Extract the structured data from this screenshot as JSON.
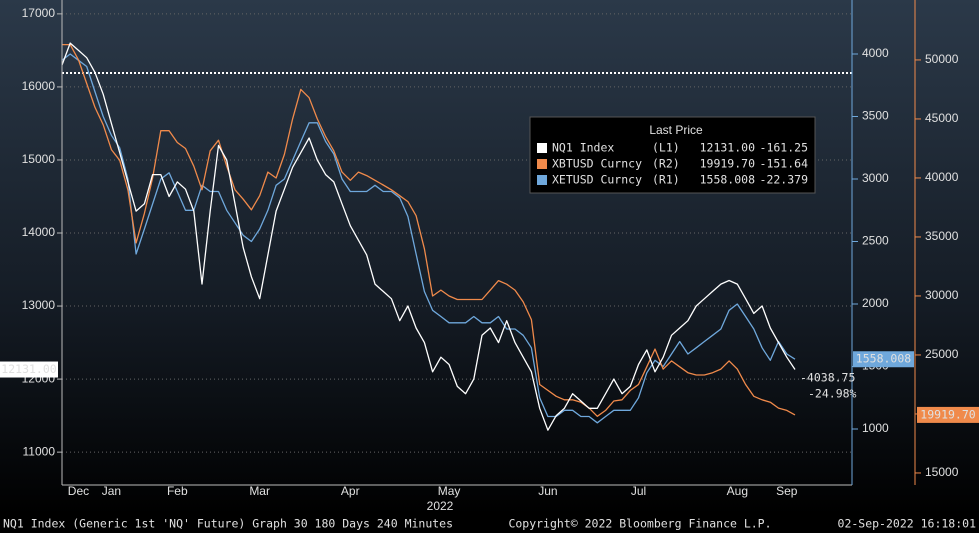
{
  "chart_data": {
    "type": "line",
    "categories": [
      null,
      null,
      "Dec",
      null,
      null,
      null,
      "Jan",
      null,
      null,
      null,
      null,
      null,
      null,
      null,
      "Feb",
      null,
      null,
      null,
      null,
      null,
      null,
      null,
      null,
      null,
      "Mar",
      null,
      null,
      null,
      null,
      null,
      null,
      null,
      null,
      null,
      null,
      "Apr",
      null,
      null,
      null,
      null,
      null,
      null,
      null,
      null,
      null,
      null,
      null,
      "May",
      null,
      null,
      null,
      null,
      null,
      null,
      null,
      null,
      null,
      null,
      null,
      "Jun",
      null,
      null,
      null,
      null,
      null,
      null,
      null,
      null,
      null,
      null,
      "Jul",
      null,
      null,
      null,
      null,
      null,
      null,
      null,
      null,
      null,
      null,
      null,
      "Aug",
      null,
      null,
      null,
      null,
      null,
      "Sep",
      null
    ],
    "year_label": "2022",
    "ylim": [
      10550,
      17190
    ],
    "yticks": [
      11000,
      12000,
      13000,
      14000,
      15000,
      16000,
      17000
    ],
    "y2lim": [
      552,
      4432
    ],
    "y2ticks": [
      1000,
      1500,
      2000,
      2500,
      3000,
      3500,
      4000
    ],
    "y2color": "#6fa8dc",
    "y3lim": [
      13980,
      55080
    ],
    "y3ticks": [
      15000,
      20000,
      25000,
      30000,
      35000,
      40000,
      45000,
      50000
    ],
    "y3color": "#f08a4b",
    "grid": true,
    "hline": 16190,
    "legend": {
      "title": "Last Price"
    },
    "series": [
      {
        "name": "NQ1 Index",
        "legend_tag": "(L1)",
        "last_label": "12131.00",
        "change_label": "-161.25",
        "color": "#ffffff",
        "axis": "y",
        "values": [
          16300,
          16600,
          16500,
          16400,
          16200,
          15900,
          15500,
          15100,
          14700,
          14300,
          14400,
          14800,
          14800,
          14500,
          14700,
          14600,
          14300,
          13300,
          14300,
          15200,
          15000,
          14400,
          13800,
          13400,
          13100,
          13700,
          14300,
          14600,
          14900,
          15100,
          15300,
          15000,
          14800,
          14700,
          14400,
          14100,
          13900,
          13700,
          13300,
          13200,
          13100,
          12800,
          13000,
          12700,
          12500,
          12100,
          12300,
          12200,
          11900,
          11800,
          12000,
          12600,
          12700,
          12500,
          12800,
          12500,
          12300,
          12100,
          11600,
          11300,
          11500,
          11600,
          11800,
          11700,
          11600,
          11600,
          11800,
          12000,
          11800,
          11900,
          12200,
          12400,
          12100,
          12300,
          12600,
          12700,
          12800,
          13000,
          13100,
          13200,
          13300,
          13350,
          13300,
          13100,
          12900,
          13000,
          12700,
          12500,
          12300,
          12131
        ]
      },
      {
        "name": "XBTUSD Curncy",
        "legend_tag": "(R2)",
        "last_label": "19919.70",
        "change_label": "-151.64",
        "color": "#f08a4b",
        "axis": "y3",
        "values": [
          51300,
          51300,
          50000,
          48000,
          46000,
          44500,
          42400,
          41500,
          39000,
          34500,
          37000,
          40000,
          44000,
          44000,
          43000,
          42500,
          41000,
          39000,
          42300,
          43200,
          41000,
          39000,
          38200,
          37300,
          38500,
          40500,
          40000,
          42000,
          45000,
          47500,
          46800,
          45000,
          43500,
          42300,
          40500,
          39800,
          40500,
          40200,
          39800,
          39400,
          39000,
          38500,
          38000,
          36800,
          34000,
          30000,
          30500,
          30000,
          29700,
          29700,
          29700,
          29700,
          30500,
          31300,
          31000,
          30500,
          29500,
          28000,
          22500,
          22000,
          21500,
          21200,
          21200,
          21000,
          20500,
          19800,
          20300,
          21100,
          21200,
          22000,
          22500,
          24000,
          25500,
          23800,
          24500,
          24000,
          23500,
          23300,
          23300,
          23500,
          23800,
          24500,
          23800,
          22500,
          21500,
          21200,
          21000,
          20500,
          20300,
          19919.7
        ]
      },
      {
        "name": "XETUSD Curncy",
        "legend_tag": "(R1)",
        "last_label": "1558.008",
        "change_label": "-22.379",
        "color": "#6fa8dc",
        "axis": "y2",
        "values": [
          3950,
          4000,
          3950,
          3900,
          3700,
          3500,
          3350,
          3250,
          3000,
          2400,
          2600,
          2800,
          3000,
          3050,
          2900,
          2750,
          2750,
          2950,
          2900,
          2900,
          2750,
          2650,
          2550,
          2500,
          2600,
          2750,
          2950,
          3000,
          3150,
          3300,
          3450,
          3450,
          3300,
          3200,
          3000,
          2900,
          2900,
          2900,
          2950,
          2900,
          2900,
          2850,
          2700,
          2400,
          2100,
          1950,
          1900,
          1850,
          1850,
          1850,
          1900,
          1850,
          1850,
          1900,
          1800,
          1800,
          1750,
          1650,
          1250,
          1100,
          1100,
          1150,
          1150,
          1100,
          1100,
          1050,
          1100,
          1150,
          1150,
          1150,
          1250,
          1450,
          1550,
          1500,
          1600,
          1700,
          1600,
          1650,
          1700,
          1750,
          1800,
          1950,
          2000,
          1900,
          1800,
          1650,
          1550,
          1700,
          1600,
          1558.008
        ]
      }
    ],
    "annotations": [
      "-4038.75",
      "-24.98%"
    ],
    "footer": {
      "left": "NQ1 Index (Generic 1st 'NQ' Future) Graph 30 180 Days 240 Minutes",
      "center": "Copyright© 2022 Bloomberg Finance L.P.",
      "right": "02-Sep-2022 16:18:01"
    }
  }
}
